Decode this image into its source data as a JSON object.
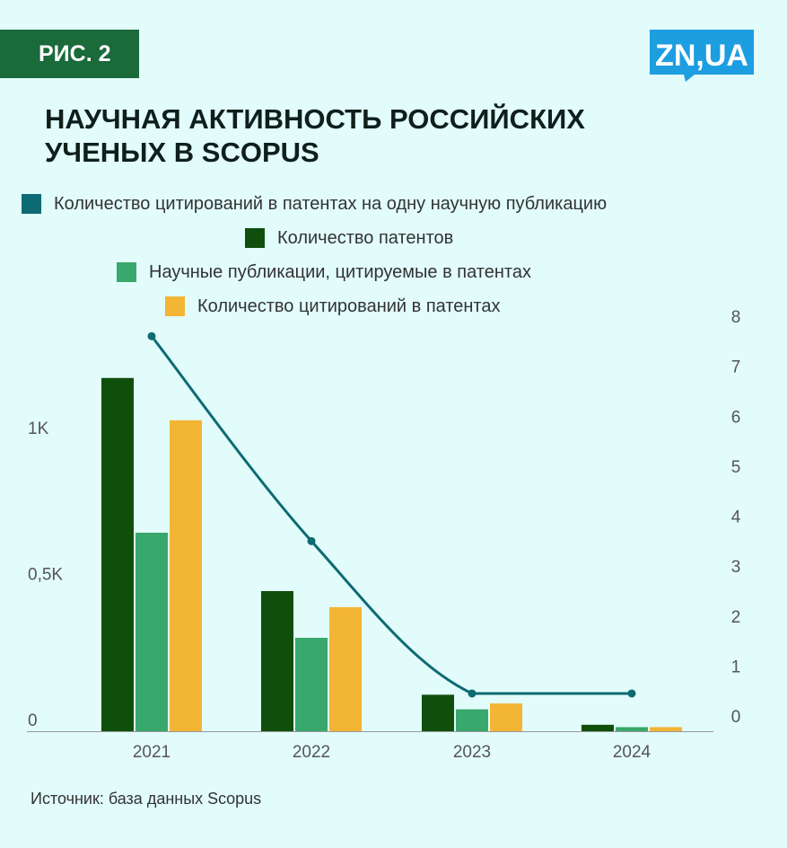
{
  "figure_label": "РИС. 2",
  "logo_text": "ZN,UA",
  "colors": {
    "background": "#e2fbfb",
    "badge": "#1a6a3a",
    "logo": "#1d9ee0",
    "line": "#0d6b73",
    "patents": "#0f4f0c",
    "publications": "#39a86c",
    "citations": "#f3b534",
    "axis": "#999999"
  },
  "chart_data": {
    "type": "bar",
    "title": "НАУЧНАЯ АКТИВНОСТЬ РОССИЙСКИХ\nУЧЕНЫХ В SCOPUS",
    "categories": [
      "2021",
      "2022",
      "2023",
      "2024"
    ],
    "series": [
      {
        "name": "Количество цитирований в патентах на одну научную публикацию",
        "type": "line",
        "axis": "right",
        "color": "#0d6b73",
        "values": [
          7.6,
          3.5,
          0.45,
          0.45
        ]
      },
      {
        "name": "Количество патентов",
        "type": "bar",
        "axis": "left",
        "color": "#0f4f0c",
        "values": 1210,
        "values_list": [
          1210,
          480,
          125,
          22
        ]
      },
      {
        "name": "Научные публикации, цитируемые в патентах",
        "type": "bar",
        "axis": "left",
        "color": "#39a86c",
        "values_list": [
          680,
          320,
          75,
          14
        ]
      },
      {
        "name": "Количество цитирований в патентах",
        "type": "bar",
        "axis": "left",
        "color": "#f3b534",
        "values_list": [
          1065,
          425,
          95,
          14
        ]
      }
    ],
    "left_axis": {
      "ticks": [
        0,
        500,
        1000
      ],
      "tick_labels": [
        "0",
        "0,5K",
        "1K"
      ],
      "ylim": [
        0,
        1500
      ]
    },
    "right_axis": {
      "ticks": [
        0,
        1,
        2,
        3,
        4,
        5,
        6,
        7,
        8
      ],
      "tick_labels": [
        "0",
        "1",
        "2",
        "3",
        "4",
        "5",
        "6",
        "7",
        "8"
      ],
      "ylim": [
        0,
        8
      ]
    },
    "grid": false,
    "legend_position": "top"
  },
  "source": "Источник: база данных Scopus"
}
